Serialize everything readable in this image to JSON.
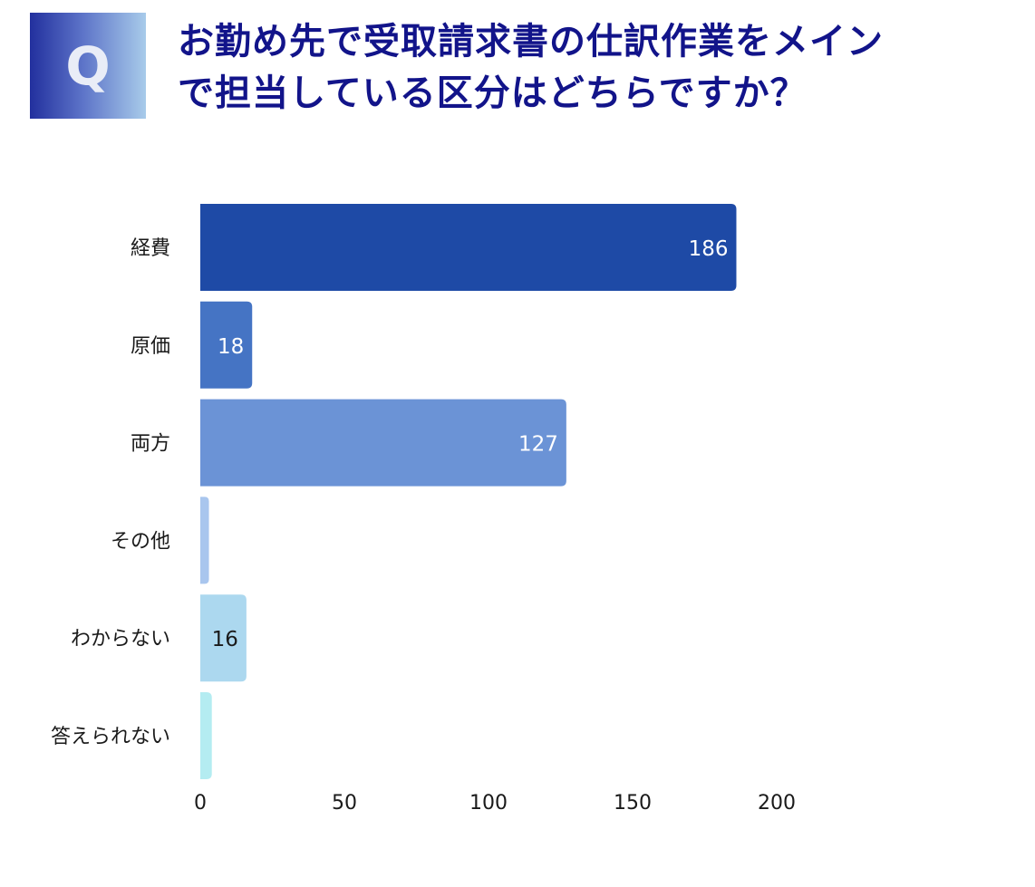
{
  "badge": {
    "letter": "Q"
  },
  "title": {
    "line1": "お勤め先で受取請求書の仕訳作業をメイン",
    "line2": "で担当している区分はどちらですか？"
  },
  "colors": {
    "title": "#12148a",
    "bars": [
      "#1e4aa6",
      "#4574c4",
      "#6b93d6",
      "#a9c6ee",
      "#acd8ef",
      "#b4ecf1"
    ],
    "data_label_light": "#ffffff",
    "data_label_dark": "#1a1a1a"
  },
  "chart_data": {
    "type": "bar",
    "orientation": "horizontal",
    "categories": [
      "経費",
      "原価",
      "両方",
      "その他",
      "わからない",
      "答えられない"
    ],
    "values": [
      186,
      18,
      127,
      3,
      16,
      4
    ],
    "data_labels": [
      "186",
      "18",
      "127",
      "",
      "16",
      ""
    ],
    "xlim": [
      0,
      200
    ],
    "xticks": [
      "0",
      "50",
      "100",
      "150",
      "200"
    ],
    "xtick_values": [
      0,
      50,
      100,
      150,
      200
    ],
    "grid": false,
    "legend": "none"
  }
}
